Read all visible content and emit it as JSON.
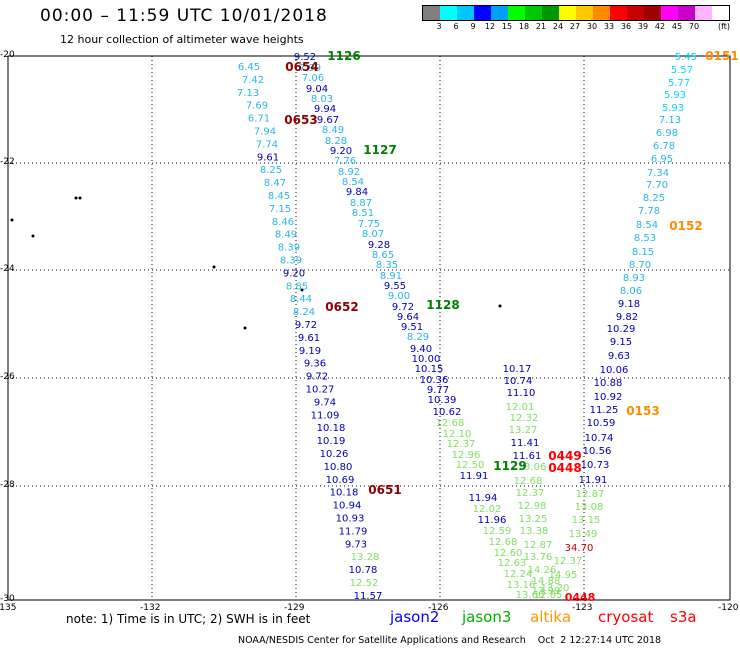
{
  "header": {
    "title": "00:00 – 11:59 UTC 10/01/2018",
    "subtitle": "12 hour collection of altimeter wave heights"
  },
  "legend": {
    "unit": "(ft)",
    "colors": [
      "#808080",
      "#00ffff",
      "#00c8ff",
      "#0000ff",
      "#00a0ff",
      "#00ff00",
      "#00c800",
      "#009600",
      "#ffff00",
      "#ffc800",
      "#ff8c00",
      "#ff0000",
      "#c80000",
      "#a00000",
      "#ff00ff",
      "#c800c8",
      "#ffb4ff",
      "#ffffff"
    ],
    "labels": [
      "3",
      "6",
      "9",
      "12",
      "15",
      "18",
      "21",
      "24",
      "27",
      "30",
      "33",
      "36",
      "39",
      "42",
      "45",
      "70"
    ]
  },
  "axes": {
    "x_ticks": [
      "-135",
      "-132",
      "-129",
      "-126",
      "-123",
      "-120"
    ],
    "y_ticks": [
      "-20",
      "-22",
      "-24",
      "-26",
      "-28",
      "-30"
    ]
  },
  "tracks": [
    {
      "label": "1126",
      "sat": "jason3",
      "color": "#008000"
    },
    {
      "label": "1127",
      "sat": "jason3",
      "color": "#008000"
    },
    {
      "label": "1128",
      "sat": "jason3",
      "color": "#008000"
    },
    {
      "label": "1129",
      "sat": "jason3",
      "color": "#008000"
    },
    {
      "label": "0654",
      "sat": "cryosat",
      "color": "#8b0000"
    },
    {
      "label": "0653",
      "sat": "cryosat",
      "color": "#8b0000"
    },
    {
      "label": "0652",
      "sat": "cryosat",
      "color": "#8b0000"
    },
    {
      "label": "0651",
      "sat": "cryosat",
      "color": "#8b0000"
    },
    {
      "label": "0151",
      "sat": "altika",
      "color": "#ff8c00"
    },
    {
      "label": "0152",
      "sat": "altika",
      "color": "#ff8c00"
    },
    {
      "label": "0153",
      "sat": "altika",
      "color": "#ff8c00"
    },
    {
      "label": "0449",
      "sat": "s3a",
      "color": "#ff0000"
    },
    {
      "label": "0448",
      "sat": "s3a",
      "color": "#ff0000"
    }
  ],
  "values": {
    "trackA": [
      "6.45",
      "7.42",
      "7.13",
      "7.69",
      "6.71",
      "7.94",
      "7.74",
      "9.61",
      "8.25",
      "8.47",
      "8.45",
      "7.15",
      "8.46",
      "8.49",
      "8.39",
      "8.39",
      "9.20",
      "8.85",
      "8.44",
      "8.24",
      "9.72",
      "9.61",
      "9.19",
      "9.36",
      "9.72",
      "10.27",
      "9.74",
      "11.09",
      "10.18",
      "10.19",
      "10.26",
      "10.80",
      "10.69",
      "10.18",
      "10.94",
      "10.93",
      "11.79",
      "9.73",
      "13.28",
      "10.78",
      "12.52",
      "11.57"
    ],
    "trackB": [
      "9.52",
      "7.99",
      "7.06",
      "9.04",
      "8.03",
      "9.94",
      "9.67",
      "8.49",
      "8.28",
      "9.20",
      "7.76",
      "8.92",
      "8.54",
      "9.84",
      "8.87",
      "8.51",
      "7.75",
      "8.07",
      "9.28",
      "8.65",
      "8.35",
      "8.91",
      "9.55",
      "9.00",
      "9.72",
      "9.64",
      "9.51",
      "8.29",
      "9.40",
      "10.00",
      "10.15",
      "10.36",
      "9.77",
      "10.39",
      "10.62",
      "12.68",
      "12.10",
      "12.37",
      "12.96",
      "12.50",
      "11.91",
      "11.94",
      "12.02",
      "11.96",
      "12.59",
      "12.68",
      "12.60",
      "12.63",
      "12.24",
      "13.16",
      "13.60"
    ],
    "trackC": [
      "10.17",
      "10.74",
      "11.10",
      "12.01",
      "12.32",
      "13.27",
      "11.41",
      "11.61",
      "13.06",
      "12.68",
      "12.37",
      "12.98",
      "13.25",
      "13.38",
      "12.87",
      "13.76",
      "14.26",
      "14.88",
      "13.99",
      "12.85"
    ],
    "trackD": [
      "5.45",
      "5.57",
      "5.77",
      "5.93",
      "5.93",
      "7.13",
      "6.98",
      "6.78",
      "6.95",
      "7.34",
      "7.70",
      "8.25",
      "7.78",
      "8.54",
      "8.53",
      "8.15",
      "8.70",
      "8.93",
      "8.06",
      "9.18",
      "9.82",
      "10.29",
      "9.15",
      "9.63",
      "10.06",
      "10.88",
      "10.92",
      "11.25",
      "10.59",
      "10.74",
      "10.56",
      "10.73",
      "11.91",
      "12.87",
      "13.08",
      "13.15",
      "13.49",
      "34.70",
      "12.37",
      "14.95",
      "13.20"
    ]
  },
  "footer": {
    "note": "note: 1) Time is in UTC; 2) SWH is in feet",
    "satellites": [
      {
        "name": "jason2",
        "color": "#0000ff"
      },
      {
        "name": "jason3",
        "color": "#00b000"
      },
      {
        "name": "altika",
        "color": "#ff9900"
      },
      {
        "name": "cryosat",
        "color": "#ff0000"
      },
      {
        "name": "s3a",
        "color": "#ff0000"
      }
    ],
    "credit": "NOAA/NESDIS Center for Satellite Applications and Research    Oct  2 12:27:14 UTC 2018"
  }
}
